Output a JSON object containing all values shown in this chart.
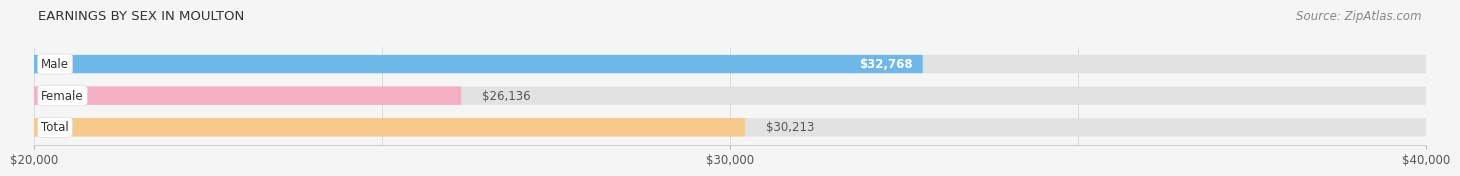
{
  "title": "EARNINGS BY SEX IN MOULTON",
  "source": "Source: ZipAtlas.com",
  "categories": [
    "Male",
    "Female",
    "Total"
  ],
  "values": [
    32768,
    26136,
    30213
  ],
  "bar_colors": [
    "#6db8e8",
    "#f5afc4",
    "#f5c98a"
  ],
  "label_texts": [
    "$32,768",
    "$26,136",
    "$30,213"
  ],
  "label_inside": [
    true,
    false,
    false
  ],
  "xmin": 20000,
  "xmax": 40000,
  "xticks": [
    20000,
    30000,
    40000
  ],
  "xtick_labels": [
    "$20,000",
    "$30,000",
    "$40,000"
  ],
  "bar_height": 0.58,
  "track_color": "#e2e2e2",
  "bg_color": "#f5f5f5",
  "title_fontsize": 9.5,
  "source_fontsize": 8.5,
  "label_fontsize": 8.5,
  "cat_fontsize": 8.5,
  "tick_fontsize": 8.5,
  "bar_edge_color": "#cccccc"
}
